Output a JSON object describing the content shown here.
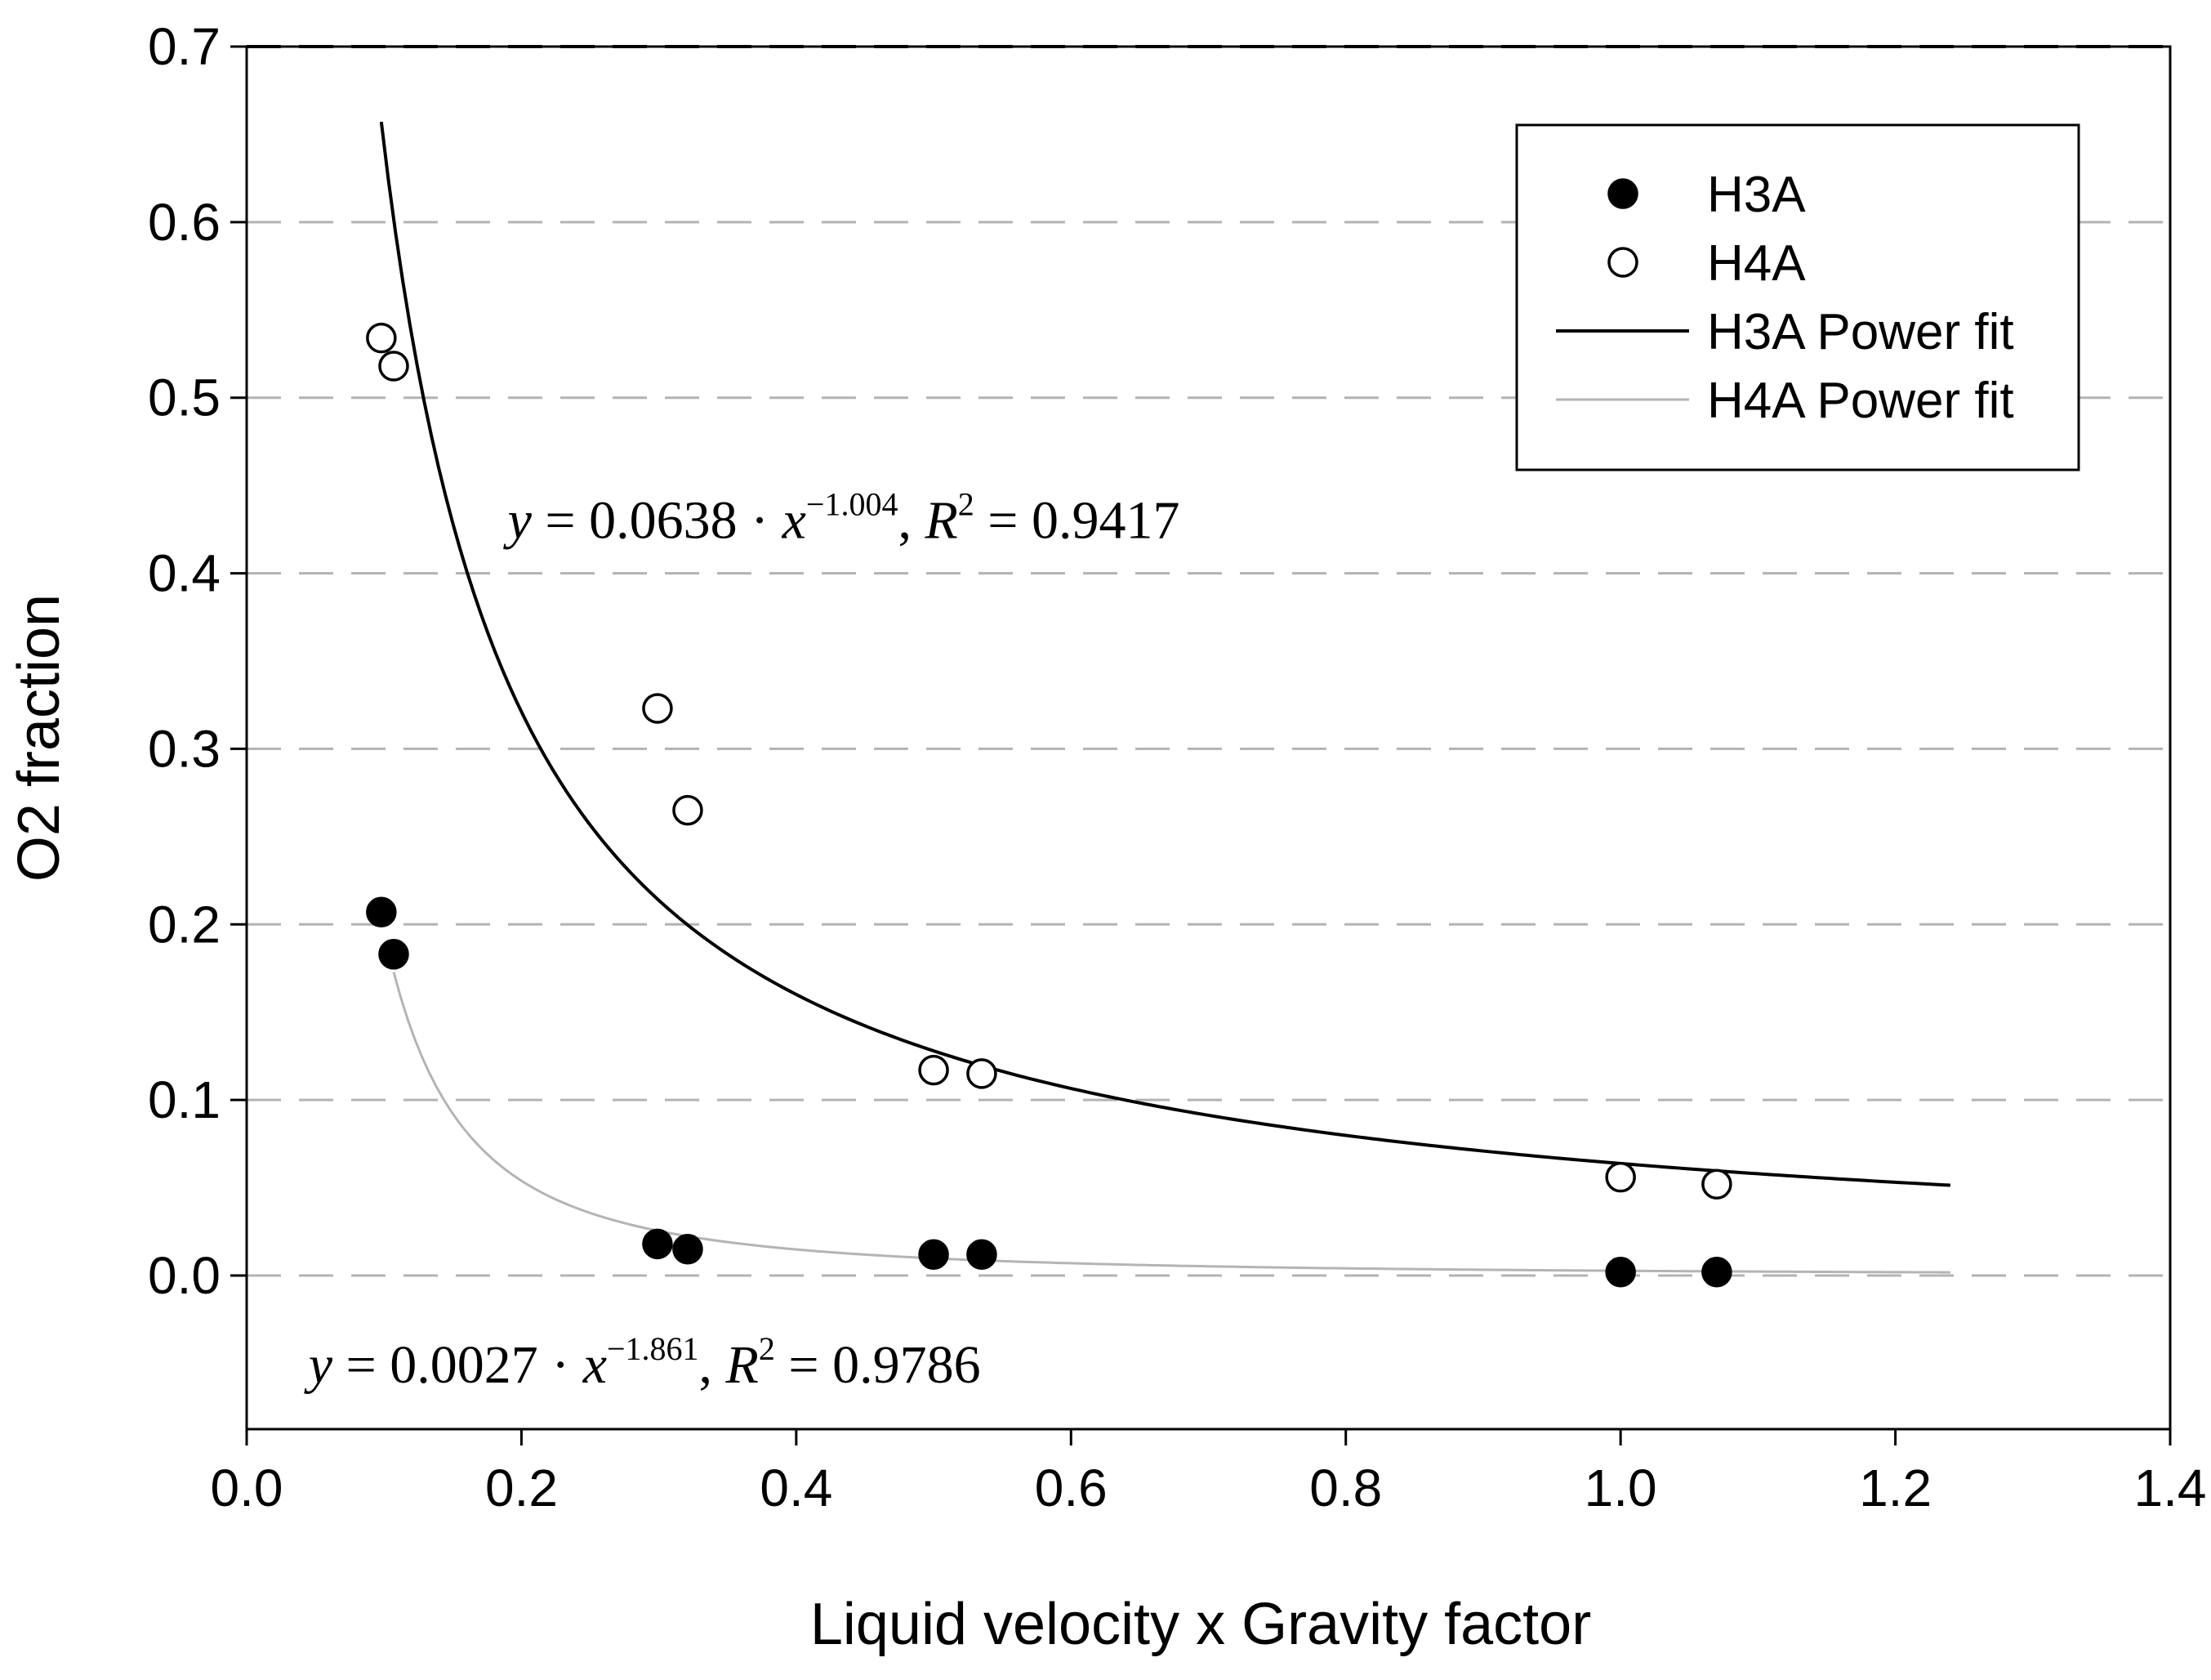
{
  "chart_data": {
    "type": "scatter",
    "xlabel": "Liquid velocity  x  Gravity factor",
    "ylabel": "O2 fraction",
    "xlim": [
      0.0,
      1.4
    ],
    "ylim": [
      -0.09,
      0.7
    ],
    "x_ticks": [
      "0.0",
      "0.2",
      "0.4",
      "0.6",
      "0.8",
      "1.0",
      "1.2",
      "1.4"
    ],
    "y_ticks": [
      "0.0",
      "0.1",
      "0.2",
      "0.3",
      "0.4",
      "0.5",
      "0.6",
      "0.7"
    ],
    "grid": "horizontal dashed",
    "legend_position": "top-right",
    "series": [
      {
        "name": "H3A",
        "marker": "filled-circle",
        "color": "#000000",
        "points": [
          {
            "x": 0.098,
            "y": 0.207
          },
          {
            "x": 0.107,
            "y": 0.183
          },
          {
            "x": 0.299,
            "y": 0.018
          },
          {
            "x": 0.321,
            "y": 0.015
          },
          {
            "x": 0.5,
            "y": 0.012
          },
          {
            "x": 0.535,
            "y": 0.012
          },
          {
            "x": 1.0,
            "y": 0.002
          },
          {
            "x": 1.07,
            "y": 0.002
          }
        ]
      },
      {
        "name": "H4A",
        "marker": "open-circle",
        "color": "#000000",
        "points": [
          {
            "x": 0.098,
            "y": 0.534
          },
          {
            "x": 0.107,
            "y": 0.518
          },
          {
            "x": 0.299,
            "y": 0.323
          },
          {
            "x": 0.321,
            "y": 0.265
          },
          {
            "x": 0.5,
            "y": 0.117
          },
          {
            "x": 0.535,
            "y": 0.115
          },
          {
            "x": 1.0,
            "y": 0.056
          },
          {
            "x": 1.07,
            "y": 0.052
          }
        ]
      }
    ],
    "fits": [
      {
        "name": "H3A Power fit",
        "color": "#000000",
        "coef": 0.0638,
        "exponent": -1.004,
        "x_range": [
          0.098,
          1.24
        ]
      },
      {
        "name": "H4A Power fit",
        "color": "#b4b4b4",
        "coef": 0.0027,
        "exponent": -1.861,
        "x_range": [
          0.107,
          1.24
        ]
      }
    ],
    "annotations": [
      {
        "id": "eq-upper",
        "prefix": "y",
        "mid": " = 0.0638 · ",
        "base": "x",
        "exp": "−1.004",
        "r_sep": ", ",
        "r": "R",
        "r_exp": "2",
        "tail": " = 0.9417",
        "anchor": {
          "x": 0.19,
          "y": 0.42
        }
      },
      {
        "id": "eq-lower",
        "prefix": "y",
        "mid": " = 0.0027 · ",
        "base": "x",
        "exp": "−1.861",
        "r_sep": ", ",
        "r": "R",
        "r_exp": "2",
        "tail": " = 0.9786",
        "anchor": {
          "x": 0.045,
          "y": -0.061
        }
      }
    ]
  }
}
